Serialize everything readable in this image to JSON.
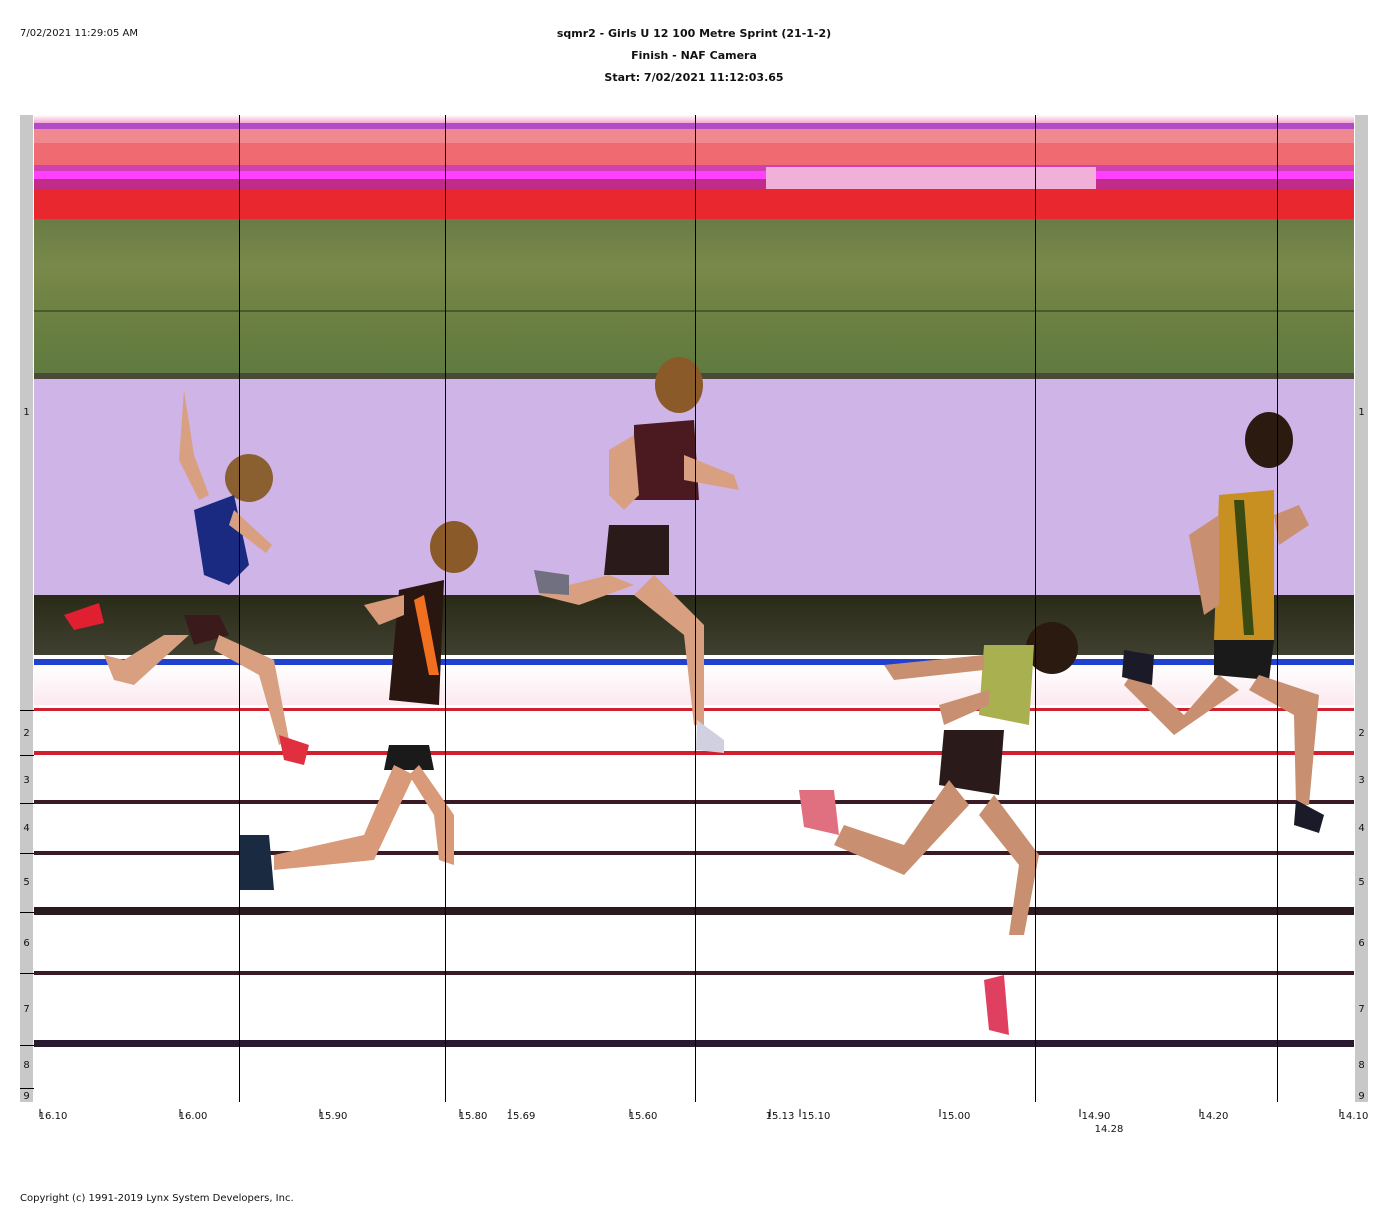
{
  "header": {
    "timestamp": "7/02/2021 11:29:05 AM",
    "title": "sqmr2 - Girls U 12 100 Metre Sprint (21-1-2)",
    "subtitle": "Finish - NAF Camera",
    "start": "Start: 7/02/2021 11:12:03.65"
  },
  "lanes": [
    "1",
    "2",
    "3",
    "4",
    "5",
    "6",
    "7",
    "8",
    "9"
  ],
  "time_axis": {
    "labels": [
      "16.10",
      "16.00",
      "15.90",
      "15.80",
      "15.69",
      "15.60",
      "15.13",
      "15.10",
      "15.00",
      "14.90",
      "14.28",
      "14.20",
      "14.10"
    ]
  },
  "footer": {
    "copyright": "Copyright (c) 1991-2019 Lynx System Developers, Inc."
  },
  "colors": {
    "sky_red": "#e8303a",
    "grass": "#6f8444",
    "wall": "#cdb3e6",
    "dark_band": "#2e2a1a",
    "lane_line": "#d02030"
  }
}
